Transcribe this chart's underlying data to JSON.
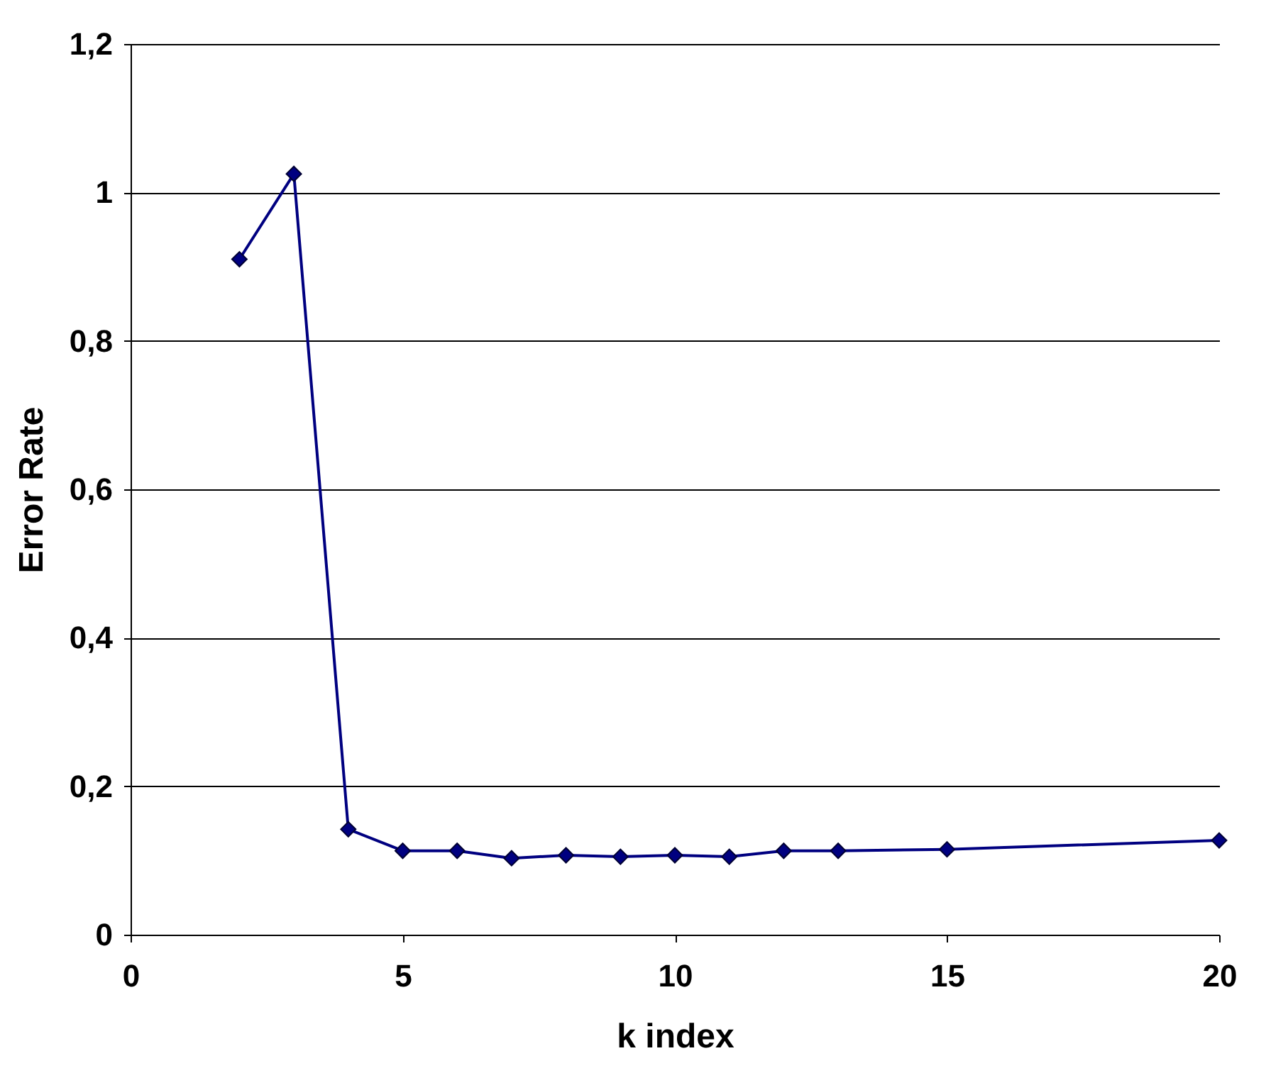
{
  "chart_data": {
    "type": "line",
    "xlabel": "k index",
    "ylabel": "Error Rate",
    "x": [
      2,
      3,
      4,
      5,
      6,
      7,
      8,
      9,
      10,
      11,
      12,
      13,
      15,
      20
    ],
    "series": [
      {
        "color": "#000080",
        "values": [
          0.91,
          1.025,
          0.142,
          0.113,
          0.113,
          0.103,
          0.107,
          0.105,
          0.107,
          0.105,
          0.113,
          0.113,
          0.115,
          0.127
        ]
      }
    ],
    "xlim": [
      0,
      20
    ],
    "xticks": [
      0,
      5,
      10,
      15,
      20
    ],
    "ylim": [
      0,
      1.2
    ],
    "yticks": [
      0,
      {
        "value": 0.2,
        "label": "0,2"
      },
      {
        "value": 0.4,
        "label": "0,4"
      },
      {
        "value": 0.6,
        "label": "0,6"
      },
      {
        "value": 0.8,
        "label": "0,8"
      },
      1,
      {
        "value": 1.2,
        "label": "1,2"
      }
    ],
    "grid": "y",
    "marker": "diamond",
    "line_style": "solid"
  }
}
